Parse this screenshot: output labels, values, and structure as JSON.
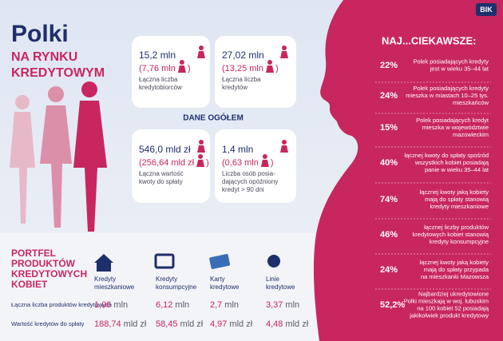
{
  "header": {
    "logo": "BIK",
    "title": "Polki",
    "subtitle": [
      "NA RYNKU",
      "KREDYTOWYM"
    ]
  },
  "overview": {
    "title": "DANE OGÓŁEM",
    "boxes": [
      {
        "value": "15,2 mln",
        "women": "(7,76 mln",
        "close": ")",
        "label": [
          "Łączna liczba",
          "kredytobiorców"
        ]
      },
      {
        "value": "27,02 mln",
        "women": "(13,25 mln",
        "close": ")",
        "label": [
          "Łączna liczba",
          "kredytów"
        ]
      },
      {
        "value": "546,0 mld zł",
        "women": "(256,64 mld zł",
        "close": ")",
        "label": [
          "Łączna wartość",
          "kwoty do spłaty"
        ]
      },
      {
        "value": "1,4 mln",
        "women": "(0,63 mln",
        "close": ")",
        "label": [
          "Liczba osób posia-",
          "dających opóźniony",
          "kredyt > 90 dni"
        ]
      }
    ]
  },
  "facts": {
    "title": "NAJ...CIEKAWSZE:",
    "items": [
      {
        "percent": "22%",
        "text": [
          "Polek posiadających kredyty",
          "jest w wieku 35–44 lat"
        ]
      },
      {
        "percent": "24%",
        "text": [
          "Polek posiadających kredyty",
          "mieszka w miastach 10–25 tys.",
          "mieszkańców"
        ]
      },
      {
        "percent": "15%",
        "text": [
          "Polek posiadających kredyt",
          "mieszka w województwie",
          "mazowieckim"
        ]
      },
      {
        "percent": "40%",
        "text": [
          "łącznej kwoty do spłaty spośród",
          "wszystkich kobiet posiadają",
          "panie w wieku 35–44 lat"
        ]
      },
      {
        "percent": "74%",
        "text": [
          "łącznej kwoty jaką kobiety",
          "mają do spłaty stanowią",
          "kredyty mieszkaniowe"
        ]
      },
      {
        "percent": "46%",
        "text": [
          "łącznej liczby produktów",
          "kredytowych kobiet stanowią",
          "kredyty konsumpcyjne"
        ]
      },
      {
        "percent": "24%",
        "text": [
          "łącznej kwoty jaką kobiety",
          "mają do spłaty przypada",
          "na mieszkanki Mazowsza"
        ]
      },
      {
        "percent": "52,2%",
        "text": [
          "Najbardziej ukredytowione",
          "Polki mieszkają w woj. lubuskim",
          "na 100 kobiet 52 posiadają",
          "jakikolwiek produkt kredytowy"
        ]
      }
    ]
  },
  "portfolio": {
    "title": [
      "PORTFEL",
      "PRODUKTÓW",
      "KREDYTOWYCH",
      "KOBIET"
    ],
    "columns": [
      [
        "Kredyty",
        "mieszkaniowe"
      ],
      [
        "Kredyty",
        "konsumpcyjne"
      ],
      [
        "Karty",
        "kredytowe"
      ],
      [
        "Linie",
        "kredytowe"
      ]
    ],
    "rows": [
      {
        "label": "Łączna liczba produktów kredytowych",
        "values": [
          {
            "number": "1,06",
            "unit": "mln"
          },
          {
            "number": "6,12",
            "unit": "mln"
          },
          {
            "number": "2,7",
            "unit": "mln"
          },
          {
            "number": "3,37",
            "unit": "mln"
          }
        ]
      },
      {
        "label": "Wartość kredytów do spłaty",
        "values": [
          {
            "number": "188,74",
            "unit": "mld zł"
          },
          {
            "number": "58,45",
            "unit": "mld zł"
          },
          {
            "number": "4,97",
            "unit": "mld zł"
          },
          {
            "number": "4,48",
            "unit": "mld zł"
          }
        ]
      }
    ]
  }
}
